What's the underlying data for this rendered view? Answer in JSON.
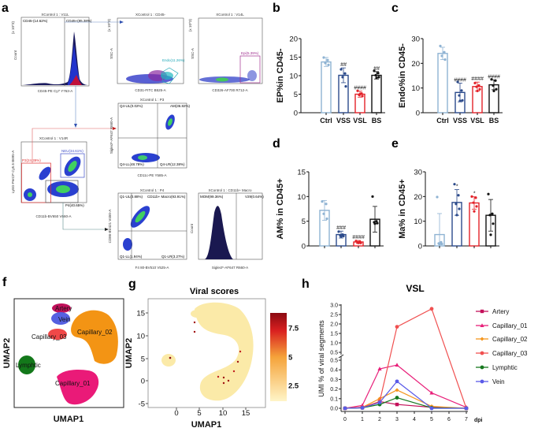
{
  "panel_labels": {
    "a": "a",
    "b": "b",
    "c": "c",
    "d": "d",
    "e": "e",
    "f": "f",
    "g": "g",
    "h": "h"
  },
  "flow": {
    "p1": {
      "title": "XControl 1 : V11L",
      "scale": "(x 10^3)",
      "xlabel": "CD45-PE Cy7 Y763-A",
      "ylabel": "Count",
      "gates": [
        "CD45-(14.62%)",
        "CD45+(85.38%)"
      ]
    },
    "p2": {
      "title": "XControl 1 : CD45-",
      "scale": "(x 10^3)",
      "xlabel": "CD31-FITC B525-A",
      "ylabel": "SSC-A",
      "gates": [
        "Endo(11.26%)"
      ]
    },
    "p3": {
      "title": "XControl 1 : V14L",
      "scale": "(x 10^3)",
      "xlabel": "CD326-AF700 R712-A",
      "ylabel": "SSC-A",
      "gates": [
        "Epi(5.39%)"
      ]
    },
    "p4": {
      "title": "XControl 1 : P3",
      "xlabel": "CD11c-PE Y585-A",
      "ylabel": "SiglecF-AF647 R660-A",
      "gates": [
        "Q4-UL(0.02%)",
        "AM(36.82%)",
        "Q4-LL(48.78%)",
        "Q4-LR(12.38%)"
      ]
    },
    "p5": {
      "title": "XControl 1 : V14R",
      "xlabel": "CD11b-BV650 V660-A",
      "ylabel": "Ly6G-PerCP Cy5.5 B695-A",
      "gates": [
        "NEU(34.61%)",
        "P3(24.39%)",
        "P4(40.65%)"
      ]
    },
    "p6": {
      "title": "XControl 1 : P4",
      "xlabel": "F4 80-BV510 V525-A",
      "ylabel": "CD86-BV421 V450-A",
      "gates": [
        "Q1-UL(0.88%)",
        "CD11b+ Macro(93.91%)",
        "Q1-LL(1.94%)",
        "Q1-LR(3.27%)"
      ]
    },
    "p7": {
      "title": "XControl 1 : CD11b+ Macro",
      "xlabel": "SiglecF-AF647 R660-A",
      "ylabel": "Count",
      "gates": [
        "MOM(99.36%)",
        "V29(0.64%)"
      ]
    }
  },
  "group_colors": {
    "Ctrl": "#8fb3d3",
    "VSS": "#2b4a8b",
    "VSL": "#e32229",
    "BS": "#111111"
  },
  "chart_data": [
    {
      "id": "b",
      "type": "bar",
      "ylabel": "EP%in CD45-",
      "categories": [
        "Ctrl",
        "VSS",
        "VSL",
        "BS"
      ],
      "values": [
        13.7,
        10.1,
        5.0,
        10.1
      ],
      "errors": [
        1.2,
        2.0,
        0.8,
        1.0
      ],
      "points": [
        [
          14.9,
          14.2,
          13.4,
          12.9
        ],
        [
          11.7,
          10.6,
          9.6,
          7.1
        ],
        [
          5.9,
          5.2,
          4.8,
          4.5,
          5.0
        ],
        [
          11.3,
          10.7,
          10.1,
          9.6,
          9.4
        ]
      ],
      "annotations": [
        "",
        "##",
        "####",
        "##"
      ],
      "ylim": [
        0,
        20
      ],
      "yticks": [
        "0",
        "5",
        "10",
        "15",
        "20"
      ],
      "show_categories": true
    },
    {
      "id": "c",
      "type": "bar",
      "ylabel": "Endo%in CD45-",
      "categories": [
        "Ctrl",
        "VSS",
        "VSL",
        "BS"
      ],
      "values": [
        24.0,
        8.2,
        10.6,
        11.3
      ],
      "errors": [
        2.5,
        3.8,
        1.8,
        2.0
      ],
      "points": [
        [
          27,
          24.5,
          23,
          21.5
        ],
        [
          12.5,
          9,
          7,
          5,
          4.8
        ],
        [
          12,
          11,
          10.5,
          9.5,
          8.8
        ],
        [
          13.5,
          13,
          11,
          9.5,
          8.8
        ]
      ],
      "annotations": [
        "",
        "####",
        "####",
        "####"
      ],
      "ylim": [
        0,
        30
      ],
      "yticks": [
        "0",
        "10",
        "20",
        "30"
      ],
      "show_categories": true
    },
    {
      "id": "d",
      "type": "bar",
      "ylabel": "AM% in CD45+",
      "categories": [
        "Ctrl",
        "VSS",
        "VSL",
        "BS"
      ],
      "values": [
        7.2,
        2.3,
        0.8,
        5.4
      ],
      "errors": [
        2.0,
        0.7,
        0.3,
        2.6
      ],
      "points": [
        [
          9,
          8.5,
          6.5,
          5.5
        ],
        [
          2.9,
          2.3,
          2.1,
          2.0,
          1.9
        ],
        [
          1.0,
          0.8,
          0.7,
          0.6,
          0.6
        ],
        [
          10,
          5.0,
          4.8,
          4.6,
          4.5
        ]
      ],
      "annotations": [
        "",
        "###",
        "####",
        ""
      ],
      "ylim": [
        0,
        15
      ],
      "yticks": [
        "0",
        "5",
        "10",
        "15"
      ],
      "show_categories": false
    },
    {
      "id": "e",
      "type": "bar",
      "ylabel": "Ma% in CD45+",
      "categories": [
        "Ctrl",
        "VSS",
        "VSL",
        "BS"
      ],
      "values": [
        4.6,
        17.6,
        17.4,
        12.4
      ],
      "errors": [
        8.5,
        5.2,
        2.5,
        6.4
      ],
      "points": [
        [
          19.8,
          1.5,
          1.0,
          0.8,
          0.7
        ],
        [
          25,
          20.5,
          17,
          15,
          12.5
        ],
        [
          20,
          19.5,
          17.5,
          16,
          14
        ],
        [
          21,
          13,
          12.5,
          9,
          4.5
        ]
      ],
      "annotations": [
        "",
        "*",
        "*",
        ""
      ],
      "ylim": [
        0,
        30
      ],
      "yticks": [
        "0",
        "10",
        "20",
        "30"
      ],
      "show_categories": false
    },
    {
      "id": "f",
      "type": "scatter",
      "xlabel": "UMAP1",
      "ylabel": "UMAP2",
      "clusters": [
        {
          "name": "Artery",
          "color": "#c0105a"
        },
        {
          "name": "Vein",
          "color": "#5560e0"
        },
        {
          "name": "Capillary_03",
          "color": "#f04848"
        },
        {
          "name": "Capillary_02",
          "color": "#f39414"
        },
        {
          "name": "Lymphtic",
          "color": "#13781a"
        },
        {
          "name": "Capillary_01",
          "color": "#ea1a78"
        }
      ]
    },
    {
      "id": "g",
      "type": "scatter",
      "title": "Viral scores",
      "xlabel": "UMAP1",
      "ylabel": "UMAP2",
      "xticks": [
        "0",
        "5",
        "10",
        "15"
      ],
      "yticks": [
        "15",
        "10",
        "5",
        "0",
        "-5"
      ],
      "colorbar": {
        "ticks": [
          "7.5",
          "5",
          "2.5"
        ],
        "range": [
          1,
          9
        ],
        "low": "#fff5c8",
        "mid": "#f5a33a",
        "high": "#8b0a12"
      }
    },
    {
      "id": "h",
      "type": "line",
      "title": "VSL",
      "xlabel": "dpi",
      "ylabel": "UMI % of viral segments",
      "x": [
        0,
        1,
        2,
        3,
        5,
        7
      ],
      "xticks": [
        "0",
        "1",
        "2",
        "3",
        "4",
        "5",
        "6",
        "7"
      ],
      "yticks_lower": [
        "0.0",
        "0.1",
        "0.2",
        "0.3",
        "0.4",
        "0.5"
      ],
      "yticks_upper": [
        "0.5",
        "1.0",
        "1.5",
        "2.0",
        "2.5",
        "3.0"
      ],
      "y_axis_break": 0.5,
      "series": [
        {
          "name": "Artery",
          "color": "#c4105a",
          "marker": "square",
          "values": [
            0,
            0.005,
            0.07,
            0.04,
            0.01,
            0
          ]
        },
        {
          "name": "Capillary_01",
          "color": "#e8207a",
          "marker": "triangle",
          "values": [
            0,
            0.03,
            0.41,
            0.45,
            0.16,
            0.01
          ]
        },
        {
          "name": "Capillary_02",
          "color": "#f5961e",
          "marker": "diamond",
          "values": [
            0,
            0.01,
            0.1,
            0.19,
            0.02,
            0
          ]
        },
        {
          "name": "Capillary_03",
          "color": "#f05050",
          "marker": "circle",
          "values": [
            0,
            0.01,
            0.07,
            1.85,
            2.8,
            0
          ]
        },
        {
          "name": "Lymphtic",
          "color": "#16781e",
          "marker": "circle",
          "values": [
            0,
            0.005,
            0.04,
            0.11,
            0.005,
            0
          ]
        },
        {
          "name": "Vein",
          "color": "#5a5ae8",
          "marker": "circle",
          "values": [
            0,
            0.005,
            0.06,
            0.28,
            0,
            0
          ]
        }
      ]
    }
  ]
}
